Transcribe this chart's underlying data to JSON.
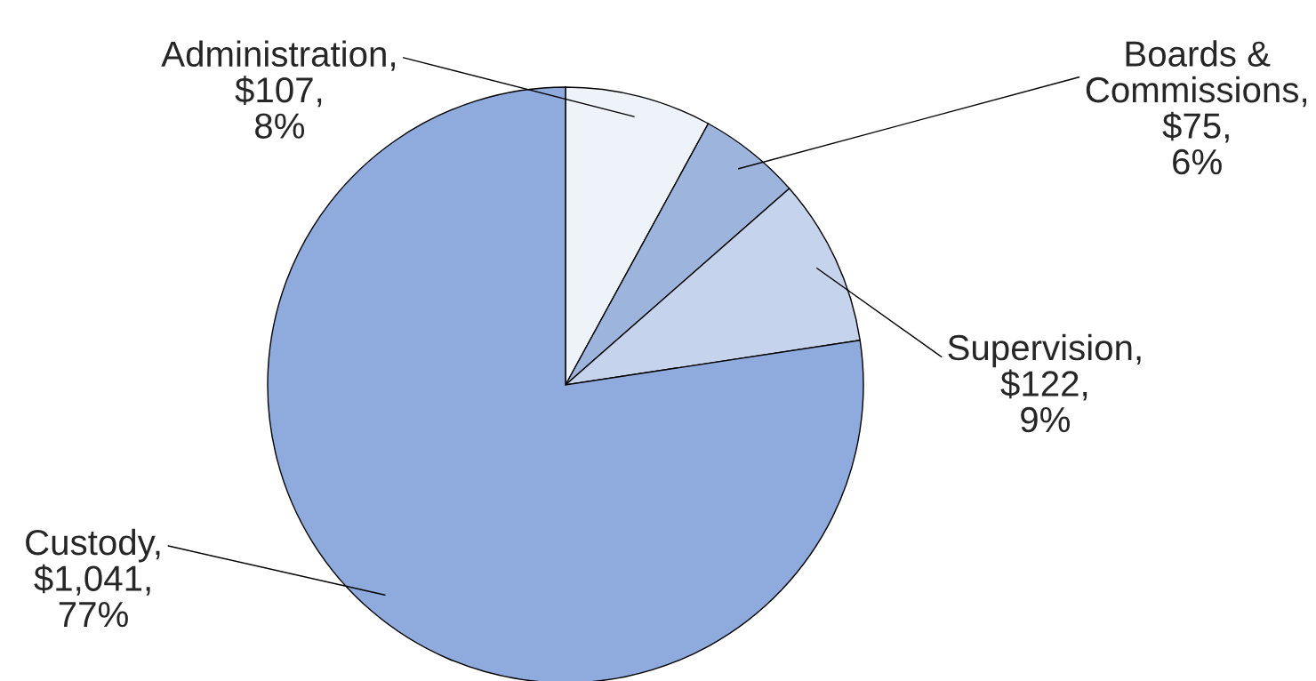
{
  "chart_data": {
    "type": "pie",
    "categories": [
      "Administration",
      "Boards & Commissions",
      "Supervision",
      "Custody"
    ],
    "values": [
      107,
      75,
      122,
      1041
    ],
    "value_labels": [
      ",\n$107,\n8%",
      ",\n$75,\n6%",
      ",\n$122,\n9%",
      ",\n$1,041,\n77%"
    ],
    "colors": [
      "#eef2f9",
      "#9db5dd",
      "#c5d3ec",
      "#8faadc"
    ]
  }
}
